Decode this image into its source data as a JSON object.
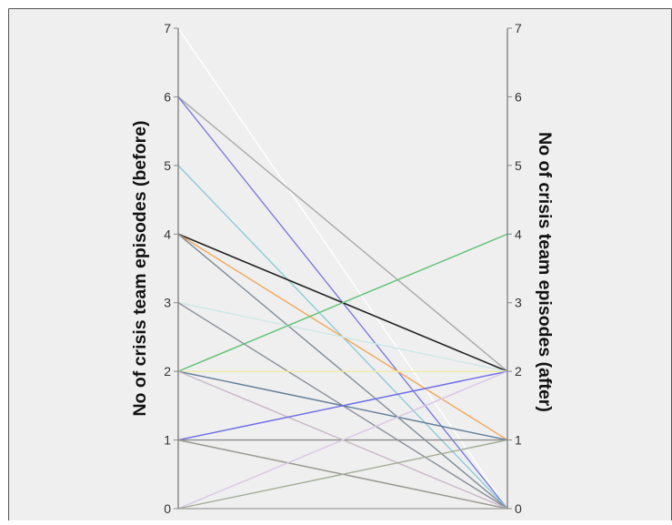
{
  "chart_data": {
    "type": "parallel-coordinates",
    "background": "#efefef",
    "axes": [
      {
        "label": "No of crisis team episodes (before)",
        "range": [
          0,
          7
        ],
        "ticks": [
          "0",
          "1",
          "2",
          "3",
          "4",
          "5",
          "6",
          "7"
        ]
      },
      {
        "label": "No of crisis team episodes (after)",
        "range": [
          0,
          7
        ],
        "ticks": [
          "0",
          "1",
          "2",
          "3",
          "4",
          "5",
          "6",
          "7"
        ]
      }
    ],
    "grid": false,
    "legend": "none",
    "lines": [
      {
        "before": 7,
        "after": 0,
        "color": "#ffffff"
      },
      {
        "before": 6,
        "after": 2,
        "color": "#a8a8a8"
      },
      {
        "before": 6,
        "after": 0,
        "color": "#7b7be0"
      },
      {
        "before": 5,
        "after": 0,
        "color": "#8ecbd6"
      },
      {
        "before": 4,
        "after": 2,
        "color": "#222222"
      },
      {
        "before": 4,
        "after": 1,
        "color": "#f2a65a"
      },
      {
        "before": 4,
        "after": 0,
        "color": "#7f8c96"
      },
      {
        "before": 3,
        "after": 2,
        "color": "#cde8e6"
      },
      {
        "before": 3,
        "after": 0,
        "color": "#8a9099"
      },
      {
        "before": 2,
        "after": 4,
        "color": "#5fbf73"
      },
      {
        "before": 2,
        "after": 2,
        "color": "#f2eba4"
      },
      {
        "before": 2,
        "after": 1,
        "color": "#5f7d99"
      },
      {
        "before": 2,
        "after": 0,
        "color": "#c8b8c8"
      },
      {
        "before": 1,
        "after": 2,
        "color": "#6a6ae6"
      },
      {
        "before": 1,
        "after": 1,
        "color": "#8c8c8c"
      },
      {
        "before": 1,
        "after": 0,
        "color": "#b3a86a"
      },
      {
        "before": 1,
        "after": 0,
        "color": "#9a9a9a"
      },
      {
        "before": 0,
        "after": 2,
        "color": "#d9c6e6"
      },
      {
        "before": 0,
        "after": 1,
        "color": "#a3ad96"
      },
      {
        "before": 0,
        "after": 0,
        "color": "#aaaaaa"
      }
    ]
  }
}
